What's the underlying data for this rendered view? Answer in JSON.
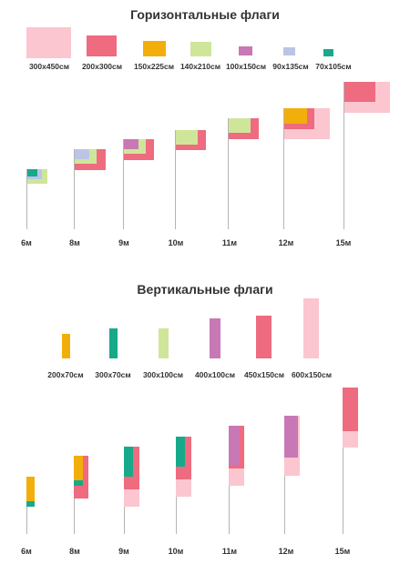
{
  "colors": {
    "pink_light": "#fbc6cf",
    "pink": "#ee6b80",
    "orange": "#f2ae0a",
    "lime": "#cfe69a",
    "violet": "#c878b4",
    "lavender": "#bcc4e6",
    "teal": "#18a98a",
    "pole": "#b5b5b5"
  },
  "horizontal": {
    "title": "Горизонтальные флаги",
    "legend": [
      {
        "label": "300х450см",
        "color": "pink_light"
      },
      {
        "label": "200х300см",
        "color": "pink"
      },
      {
        "label": "150х225см",
        "color": "orange"
      },
      {
        "label": "140х210см",
        "color": "lime"
      },
      {
        "label": "100х150см",
        "color": "violet"
      },
      {
        "label": "90х135см",
        "color": "lavender"
      },
      {
        "label": "70х105см",
        "color": "teal"
      }
    ],
    "poles": [
      {
        "height": "6м",
        "flags": [
          "lime",
          "lavender",
          "teal"
        ]
      },
      {
        "height": "8м",
        "flags": [
          "pink",
          "lime",
          "lavender"
        ]
      },
      {
        "height": "9м",
        "flags": [
          "pink",
          "lime",
          "violet"
        ]
      },
      {
        "height": "10м",
        "flags": [
          "pink",
          "lime"
        ]
      },
      {
        "height": "11м",
        "flags": [
          "pink",
          "lime"
        ]
      },
      {
        "height": "12м",
        "flags": [
          "pink_light",
          "pink",
          "orange"
        ]
      },
      {
        "height": "15м",
        "flags": [
          "pink_light",
          "pink"
        ]
      }
    ]
  },
  "vertical": {
    "title": "Вертикальные флаги",
    "legend": [
      {
        "label": "200х70см",
        "color": "orange"
      },
      {
        "label": "300х70см",
        "color": "teal"
      },
      {
        "label": "300х100см",
        "color": "lime"
      },
      {
        "label": "400х100см",
        "color": "violet"
      },
      {
        "label": "450х150см",
        "color": "pink"
      },
      {
        "label": "600х150см",
        "color": "pink_light"
      }
    ],
    "poles": [
      {
        "height": "6м",
        "flags": [
          "orange",
          "teal"
        ]
      },
      {
        "height": "8м",
        "flags": [
          "pink",
          "orange",
          "teal"
        ]
      },
      {
        "height": "9м",
        "flags": [
          "pink_light",
          "pink",
          "teal"
        ]
      },
      {
        "height": "10м",
        "flags": [
          "pink_light",
          "pink",
          "teal"
        ]
      },
      {
        "height": "11м",
        "flags": [
          "pink_light",
          "pink",
          "violet"
        ]
      },
      {
        "height": "12м",
        "flags": [
          "pink_light",
          "violet"
        ]
      },
      {
        "height": "15м",
        "flags": [
          "pink_light",
          "pink"
        ]
      }
    ]
  }
}
